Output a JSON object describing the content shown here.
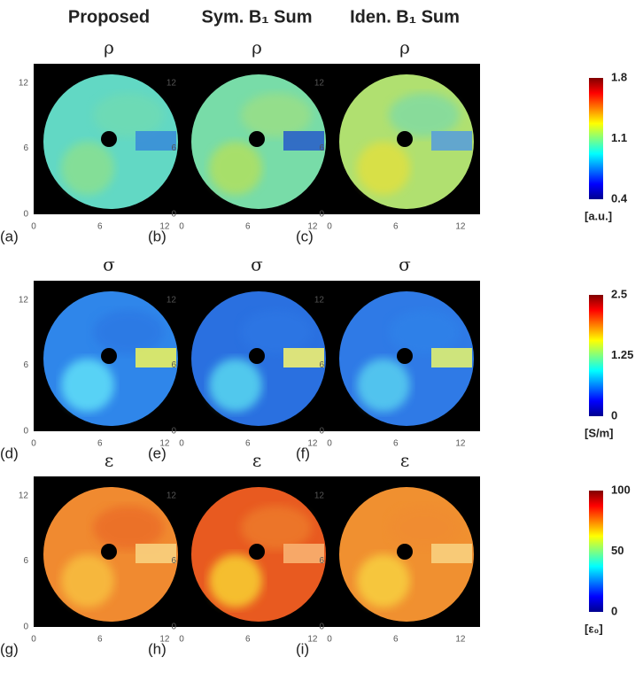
{
  "columns": [
    "Proposed",
    "Sym. B₁ Sum",
    "Iden. B₁ Sum"
  ],
  "rows": [
    {
      "symbol": "ρ",
      "panels": [
        "(a)",
        "(b)",
        "(c)"
      ],
      "colorbar": {
        "ticks": [
          1.8,
          1.1,
          0.4
        ],
        "unit": "[a.u.]"
      }
    },
    {
      "symbol": "σ",
      "panels": [
        "(d)",
        "(e)",
        "(f)"
      ],
      "colorbar": {
        "ticks": [
          2.5,
          1.25,
          0
        ],
        "unit": "[S/m]"
      }
    },
    {
      "symbol": "ε",
      "panels": [
        "(g)",
        "(h)",
        "(i)"
      ],
      "colorbar": {
        "ticks": [
          100,
          50,
          0
        ],
        "unit": "[ε₀]"
      }
    }
  ],
  "axis_ticks": {
    "x": [
      0,
      6,
      12
    ],
    "y": [
      12,
      6,
      0
    ]
  }
}
